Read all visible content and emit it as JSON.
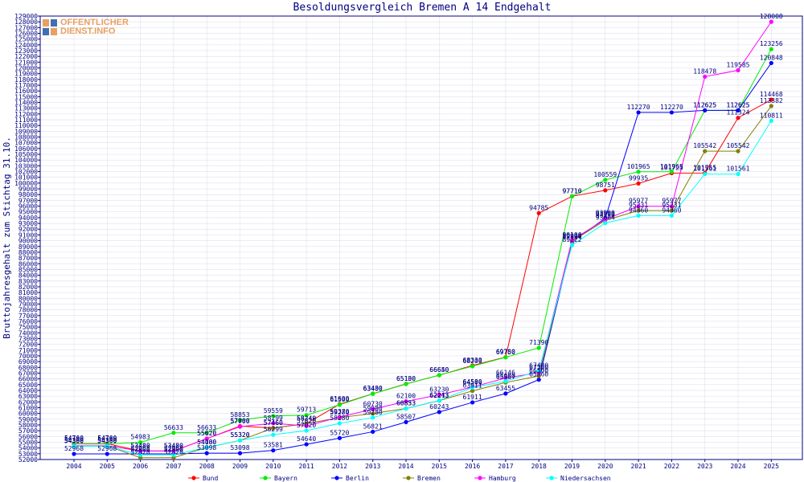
{
  "logo": {
    "line1": "OFFENTLICHER",
    "line2": "DIENST.INFO"
  },
  "colors": {
    "axis": "#000080",
    "grid": "#d8d8f0",
    "Bund": "#ff0000",
    "Bayern": "#00ee00",
    "Berlin": "#0000ff",
    "Bremen": "#808000",
    "Hamburg": "#ff00ff",
    "Niedersachsen": "#00ffff"
  },
  "chart_data": {
    "type": "line",
    "title": "Besoldungsvergleich Bremen A 14 Endgehalt",
    "ylabel": "Bruttojahresgehalt zum Stichtag 31.10.",
    "xlabel": "",
    "ylim": [
      52000,
      129000
    ],
    "ytick_step": 1000,
    "grid": true,
    "legend": "bottom",
    "x": [
      2004,
      2005,
      2006,
      2007,
      2008,
      2009,
      2010,
      2011,
      2012,
      2013,
      2014,
      2015,
      2016,
      2017,
      2018,
      2019,
      2020,
      2021,
      2022,
      2023,
      2024,
      2025
    ],
    "series": [
      {
        "name": "Bund",
        "values": [
          54760,
          54760,
          53480,
          53480,
          55620,
          57800,
          57460,
          58240,
          61600,
          63430,
          65130,
          66640,
          68330,
          69780,
          94785,
          97710,
          98751,
          99935,
          101725,
          101755,
          111324,
          114468
        ]
      },
      {
        "name": "Bayern",
        "values": [
          54700,
          54700,
          54983,
          56633,
          56633,
          58853,
          59559,
          59713,
          61500,
          63400,
          65100,
          66650,
          68200,
          69750,
          71390,
          97710,
          100559,
          101965,
          101965,
          112625,
          112625,
          123256
        ]
      },
      {
        "name": "Berlin",
        "values": [
          52968,
          52968,
          52968,
          52968,
          53098,
          53098,
          53581,
          54640,
          55720,
          56821,
          58507,
          60243,
          61911,
          63455,
          65860,
          89800,
          93900,
          112270,
          112270,
          112625,
          112625,
          120848
        ]
      },
      {
        "name": "Bremen",
        "values": [
          54380,
          54380,
          52320,
          52320,
          54080,
          55320,
          57460,
          58240,
          59280,
          59980,
          60853,
          62213,
          63911,
          65367,
          66500,
          89900,
          93530,
          95231,
          95231,
          105542,
          105542,
          113382
        ]
      },
      {
        "name": "Hamburg",
        "values": [
          54380,
          54380,
          53480,
          53480,
          55620,
          57700,
          58299,
          57820,
          59370,
          60730,
          62100,
          63230,
          64580,
          66146,
          67100,
          90100,
          93700,
          95977,
          95977,
          118478,
          119585,
          128008
        ]
      },
      {
        "name": "Niedersachsen",
        "values": [
          54300,
          54300,
          52800,
          52800,
          54100,
          55320,
          56299,
          57020,
          58280,
          59280,
          60833,
          62243,
          64506,
          65600,
          67400,
          89222,
          93064,
          94360,
          94360,
          101561,
          101561,
          110811
        ]
      }
    ]
  }
}
